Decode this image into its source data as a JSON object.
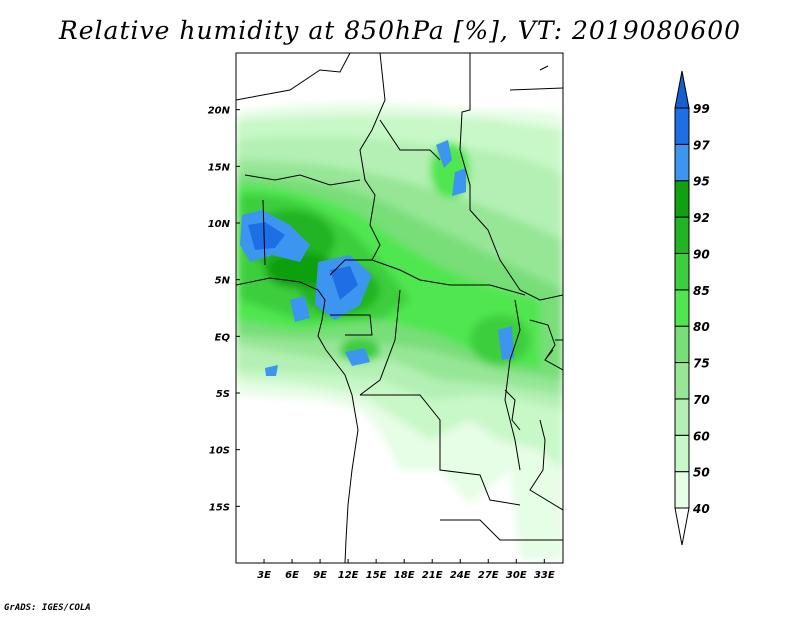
{
  "title": "Relative humidity at 850hPa [%], VT: 2019080600",
  "credit": "GrADS: IGES/COLA",
  "map": {
    "lon_range": [
      0,
      35
    ],
    "lat_range": [
      -20,
      25
    ],
    "lat_labels": [
      {
        "lat": 20,
        "label": "20N"
      },
      {
        "lat": 15,
        "label": "15N"
      },
      {
        "lat": 10,
        "label": "10N"
      },
      {
        "lat": 5,
        "label": "5N"
      },
      {
        "lat": 0,
        "label": "EQ"
      },
      {
        "lat": -5,
        "label": "5S"
      },
      {
        "lat": -10,
        "label": "10S"
      },
      {
        "lat": -15,
        "label": "15S"
      }
    ],
    "lon_labels": [
      {
        "lon": 3,
        "label": "3E"
      },
      {
        "lon": 6,
        "label": "6E"
      },
      {
        "lon": 9,
        "label": "9E"
      },
      {
        "lon": 12,
        "label": "12E"
      },
      {
        "lon": 15,
        "label": "15E"
      },
      {
        "lon": 18,
        "label": "18E"
      },
      {
        "lon": 21,
        "label": "21E"
      },
      {
        "lon": 24,
        "label": "24E"
      },
      {
        "lon": 27,
        "label": "27E"
      },
      {
        "lon": 30,
        "label": "30E"
      },
      {
        "lon": 33,
        "label": "33E"
      }
    ]
  },
  "colorbar": {
    "levels": [
      "40",
      "50",
      "60",
      "70",
      "75",
      "80",
      "85",
      "90",
      "92",
      "95",
      "97",
      "99"
    ],
    "colors": [
      "#e6fde6",
      "#c8f8c8",
      "#b4f0b4",
      "#96e696",
      "#78de78",
      "#50e650",
      "#3cce3c",
      "#22b422",
      "#10a010",
      "#3c96f0",
      "#1e6ee6",
      "#1560d0"
    ],
    "under_color": "#ffffff"
  }
}
